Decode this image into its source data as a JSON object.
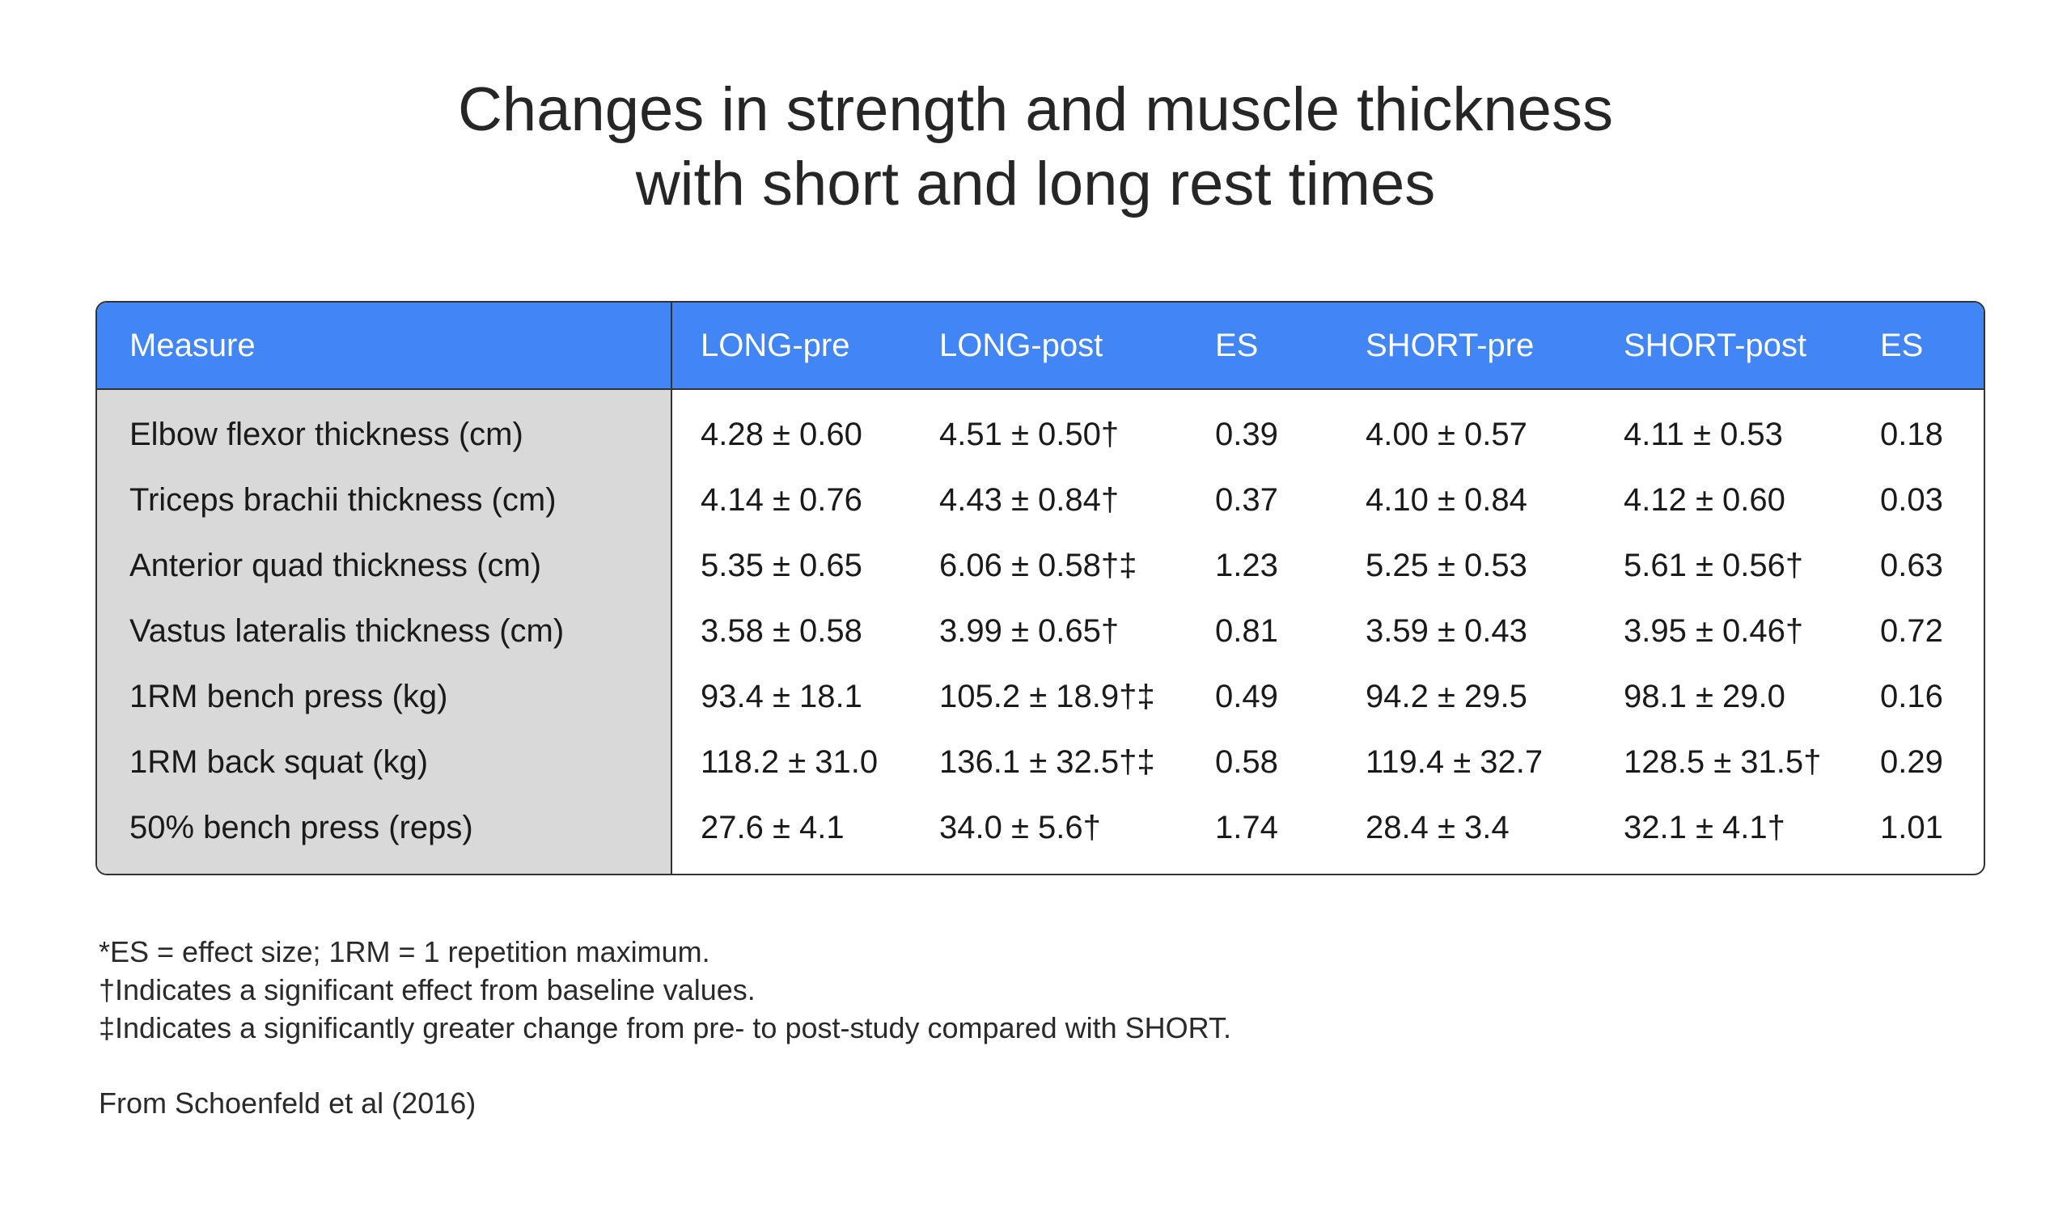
{
  "title": {
    "line1": "Changes in strength and muscle thickness",
    "line2": "with short and long rest times"
  },
  "chart_data": {
    "type": "table",
    "columns": [
      "Measure",
      "LONG-pre",
      "LONG-post",
      "ES",
      "SHORT-pre",
      "SHORT-post",
      "ES"
    ],
    "rows": [
      [
        "Elbow flexor thickness (cm)",
        "4.28 ± 0.60",
        "4.51 ± 0.50†",
        "0.39",
        "4.00 ± 0.57",
        "4.11 ± 0.53",
        "0.18"
      ],
      [
        "Triceps brachii thickness (cm)",
        "4.14 ± 0.76",
        "4.43 ± 0.84†",
        "0.37",
        "4.10 ± 0.84",
        "4.12 ± 0.60",
        "0.03"
      ],
      [
        "Anterior quad thickness (cm)",
        "5.35 ± 0.65",
        "6.06 ± 0.58†‡",
        "1.23",
        "5.25 ± 0.53",
        "5.61 ± 0.56†",
        "0.63"
      ],
      [
        "Vastus lateralis thickness (cm)",
        "3.58 ± 0.58",
        "3.99 ± 0.65†",
        "0.81",
        "3.59 ± 0.43",
        "3.95 ± 0.46†",
        "0.72"
      ],
      [
        "1RM bench press (kg)",
        "93.4 ± 18.1",
        "105.2 ± 18.9†‡",
        "0.49",
        "94.2 ± 29.5",
        "98.1 ± 29.0",
        "0.16"
      ],
      [
        "1RM back squat (kg)",
        "118.2 ± 31.0",
        "136.1 ± 32.5†‡",
        "0.58",
        "119.4 ± 32.7",
        "128.5 ± 31.5†",
        "0.29"
      ],
      [
        "50% bench press (reps)",
        "27.6 ± 4.1",
        "34.0 ± 5.6†",
        "1.74",
        "28.4 ± 3.4",
        "32.1 ± 4.1†",
        "1.01"
      ]
    ]
  },
  "notes": [
    "*ES = effect size; 1RM = 1 repetition maximum.",
    "†Indicates a significant effect from baseline values.",
    "‡Indicates a significantly greater change from pre- to post-study compared with SHORT."
  ],
  "source": "From Schoenfeld et al (2016)",
  "colors": {
    "header_bg": "#4285f4",
    "first_col_bg": "#d9d9d9",
    "border": "#333333"
  }
}
